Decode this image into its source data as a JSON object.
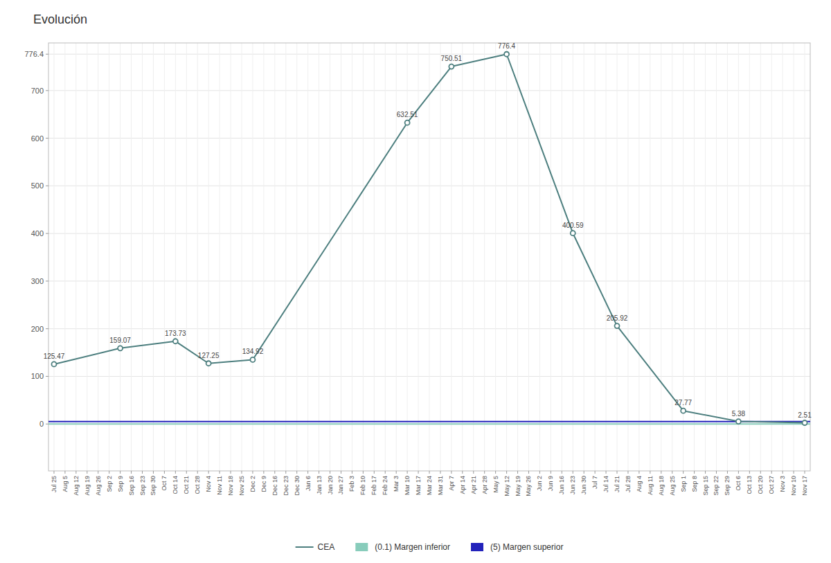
{
  "chart_data": {
    "type": "line",
    "title": "Evolución",
    "categories": [
      "Jul 25",
      "Aug 5",
      "Aug 12",
      "Aug 19",
      "Aug 26",
      "Sep 2",
      "Sep 9",
      "Sep 16",
      "Sep 23",
      "Sep 30",
      "Oct 7",
      "Oct 14",
      "Oct 21",
      "Oct 28",
      "Nov 4",
      "Nov 11",
      "Nov 18",
      "Nov 25",
      "Dec 2",
      "Dec 9",
      "Dec 16",
      "Dec 23",
      "Dec 30",
      "Jan 6",
      "Jan 13",
      "Jan 20",
      "Jan 27",
      "Feb 3",
      "Feb 10",
      "Feb 17",
      "Feb 24",
      "Mar 3",
      "Mar 10",
      "Mar 17",
      "Mar 24",
      "Mar 31",
      "Apr 7",
      "Apr 14",
      "Apr 21",
      "Apr 28",
      "May 5",
      "May 12",
      "May 19",
      "May 26",
      "Jun 2",
      "Jun 9",
      "Jun 16",
      "Jun 23",
      "Jun 30",
      "Jul 7",
      "Jul 14",
      "Jul 21",
      "Jul 28",
      "Aug 4",
      "Aug 11",
      "Aug 18",
      "Aug 25",
      "Sep 1",
      "Sep 8",
      "Sep 15",
      "Sep 22",
      "Sep 29",
      "Oct 6",
      "Oct 13",
      "Oct 20",
      "Oct 27",
      "Nov 3",
      "Nov 10",
      "Nov 17"
    ],
    "series": [
      {
        "name": "CEA",
        "color": "#4d7f7f",
        "marker": "circle",
        "line_style": "solid",
        "values": [
          125.47,
          null,
          null,
          null,
          null,
          null,
          159.07,
          null,
          null,
          null,
          null,
          173.73,
          null,
          null,
          127.25,
          null,
          null,
          null,
          134.92,
          null,
          null,
          null,
          null,
          null,
          null,
          null,
          null,
          null,
          null,
          null,
          null,
          null,
          632.51,
          null,
          null,
          null,
          750.51,
          null,
          null,
          null,
          null,
          776.4,
          null,
          null,
          null,
          null,
          null,
          400.59,
          null,
          null,
          null,
          205.92,
          null,
          null,
          null,
          null,
          null,
          27.77,
          null,
          null,
          null,
          null,
          5.38,
          null,
          null,
          null,
          null,
          null,
          2.51
        ]
      }
    ],
    "reference_lines": [
      {
        "name": "(0.1) Margen inferior",
        "value": 0.1,
        "color": "#88ccbb"
      },
      {
        "name": "(5) Margen superior",
        "value": 5,
        "color": "#2222bb"
      }
    ],
    "ylim": [
      -98.5,
      800
    ],
    "yticks": [
      0,
      100,
      200,
      300,
      400,
      500,
      600,
      700,
      776.4
    ],
    "grid": true,
    "legend": "bottom",
    "data_labels": true
  }
}
